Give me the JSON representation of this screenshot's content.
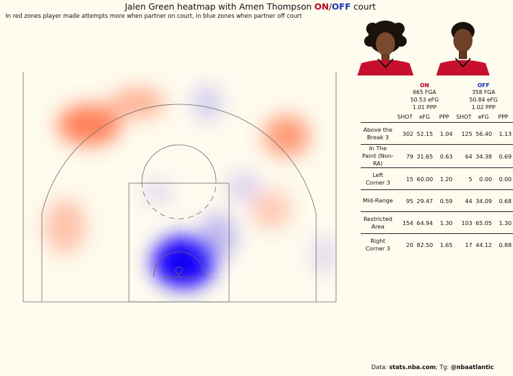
{
  "title": {
    "prefix": "Jalen Green heatmap with Amen Thompson ",
    "on": "ON",
    "sep": "/",
    "off": "OFF",
    "suffix": " court"
  },
  "subtitle": "In red zones player made attempts more when partner on court, in blue zones when partner off court",
  "colors": {
    "on": "#b8001a",
    "off": "#1a2fbf",
    "jersey": "#c8102e"
  },
  "table": {
    "on_label": "ON",
    "off_label": "OFF",
    "on_summary": [
      "665 FGA",
      "50.53 eFG",
      "1.01 PPP"
    ],
    "off_summary": [
      "358 FGA",
      "50.84 eFG",
      "1.02 PPP"
    ],
    "columns": [
      "SHOT",
      "eFG",
      "PPP",
      "SHOT",
      "eFG",
      "PPP"
    ],
    "rows": [
      {
        "zone": "Above the Break 3",
        "on_shot": "302",
        "on_efg": "52.15",
        "on_ppp": "1.04",
        "off_shot": "125",
        "off_efg": "56.40",
        "off_ppp": "1.13"
      },
      {
        "zone": "In The Paint (Non-RA)",
        "on_shot": "79",
        "on_efg": "31.65",
        "on_ppp": "0.63",
        "off_shot": "64",
        "off_efg": "34.38",
        "off_ppp": "0.69"
      },
      {
        "zone": "Left Corner 3",
        "on_shot": "15",
        "on_efg": "60.00",
        "on_ppp": "1.20",
        "off_shot": "5",
        "off_efg": "0.00",
        "off_ppp": "0.00"
      },
      {
        "zone": "Mid-Range",
        "on_shot": "95",
        "on_efg": "29.47",
        "on_ppp": "0.59",
        "off_shot": "44",
        "off_efg": "34.09",
        "off_ppp": "0.68"
      },
      {
        "zone": "Restricted Area",
        "on_shot": "154",
        "on_efg": "64.94",
        "on_ppp": "1.30",
        "off_shot": "103",
        "off_efg": "65.05",
        "off_ppp": "1.30"
      },
      {
        "zone": "Right Corner 3",
        "on_shot": "20",
        "on_efg": "82.50",
        "on_ppp": "1.65",
        "off_shot": "17",
        "off_efg": "44.12",
        "off_ppp": "0.88"
      }
    ]
  },
  "footer": {
    "prefix": "Data: ",
    "source": "stats.nba.com",
    "mid": "; Tg: ",
    "handle": "@nbaatlantic"
  },
  "chart_data": {
    "type": "heatmap",
    "description_key": "half-court shot frequency difference",
    "legend": {
      "red": "more attempts with partner ON",
      "blue": "more attempts with partner OFF"
    },
    "hot_zones": [
      {
        "zone": "left wing three",
        "sign": "on",
        "intensity": 0.75
      },
      {
        "zone": "top-left above the break",
        "sign": "on",
        "intensity": 0.45
      },
      {
        "zone": "right wing three",
        "sign": "on",
        "intensity": 0.6
      },
      {
        "zone": "left short corner mid",
        "sign": "on",
        "intensity": 0.35
      },
      {
        "zone": "right elbow extended",
        "sign": "on",
        "intensity": 0.3
      },
      {
        "zone": "restricted area",
        "sign": "off",
        "intensity": 1.0
      },
      {
        "zone": "right block paint",
        "sign": "off",
        "intensity": 0.5
      },
      {
        "zone": "top of key three",
        "sign": "off",
        "intensity": 0.35
      },
      {
        "zone": "right elbow",
        "sign": "off",
        "intensity": 0.3
      },
      {
        "zone": "free-throw line left",
        "sign": "off",
        "intensity": 0.25
      },
      {
        "zone": "right corner three",
        "sign": "off",
        "intensity": 0.3
      }
    ]
  }
}
